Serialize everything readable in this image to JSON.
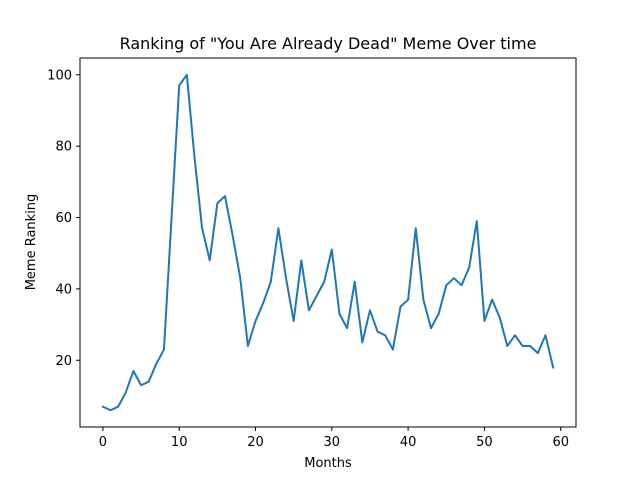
{
  "chart_data": {
    "type": "line",
    "title": "Ranking of \"You Are Already Dead\" Meme Over time",
    "xlabel": "Months",
    "ylabel": "Meme Ranking",
    "xlim": [
      -3,
      62
    ],
    "ylim": [
      1.3,
      104.7
    ],
    "xticks": [
      0,
      10,
      20,
      30,
      40,
      50,
      60
    ],
    "yticks": [
      20,
      40,
      60,
      80,
      100
    ],
    "grid": false,
    "line_color": "#1f77b4",
    "series": [
      {
        "x": [
          0,
          1,
          2,
          3,
          4,
          5,
          6,
          7,
          8,
          9,
          10,
          11,
          12,
          13,
          14,
          15,
          16,
          17,
          18,
          19,
          20,
          21,
          22,
          23,
          24,
          25,
          26,
          27,
          28,
          29,
          30,
          31,
          32,
          33,
          34,
          35,
          36,
          37,
          38,
          39,
          40,
          41,
          42,
          43,
          44,
          45,
          46,
          47,
          48,
          49,
          50,
          51,
          52,
          53,
          54,
          55,
          56,
          57,
          58,
          59
        ],
        "values": [
          7,
          6,
          7,
          11,
          17,
          13,
          14,
          19,
          23,
          60,
          97,
          100,
          77,
          57,
          48,
          64,
          66,
          55,
          43,
          24,
          31,
          36,
          42,
          57,
          43,
          31,
          48,
          34,
          38,
          42,
          51,
          33,
          29,
          42,
          25,
          34,
          28,
          27,
          23,
          35,
          37,
          57,
          37,
          29,
          33,
          41,
          43,
          41,
          46,
          59,
          31,
          37,
          32,
          24,
          27,
          24,
          24,
          22,
          27,
          18
        ]
      }
    ]
  }
}
